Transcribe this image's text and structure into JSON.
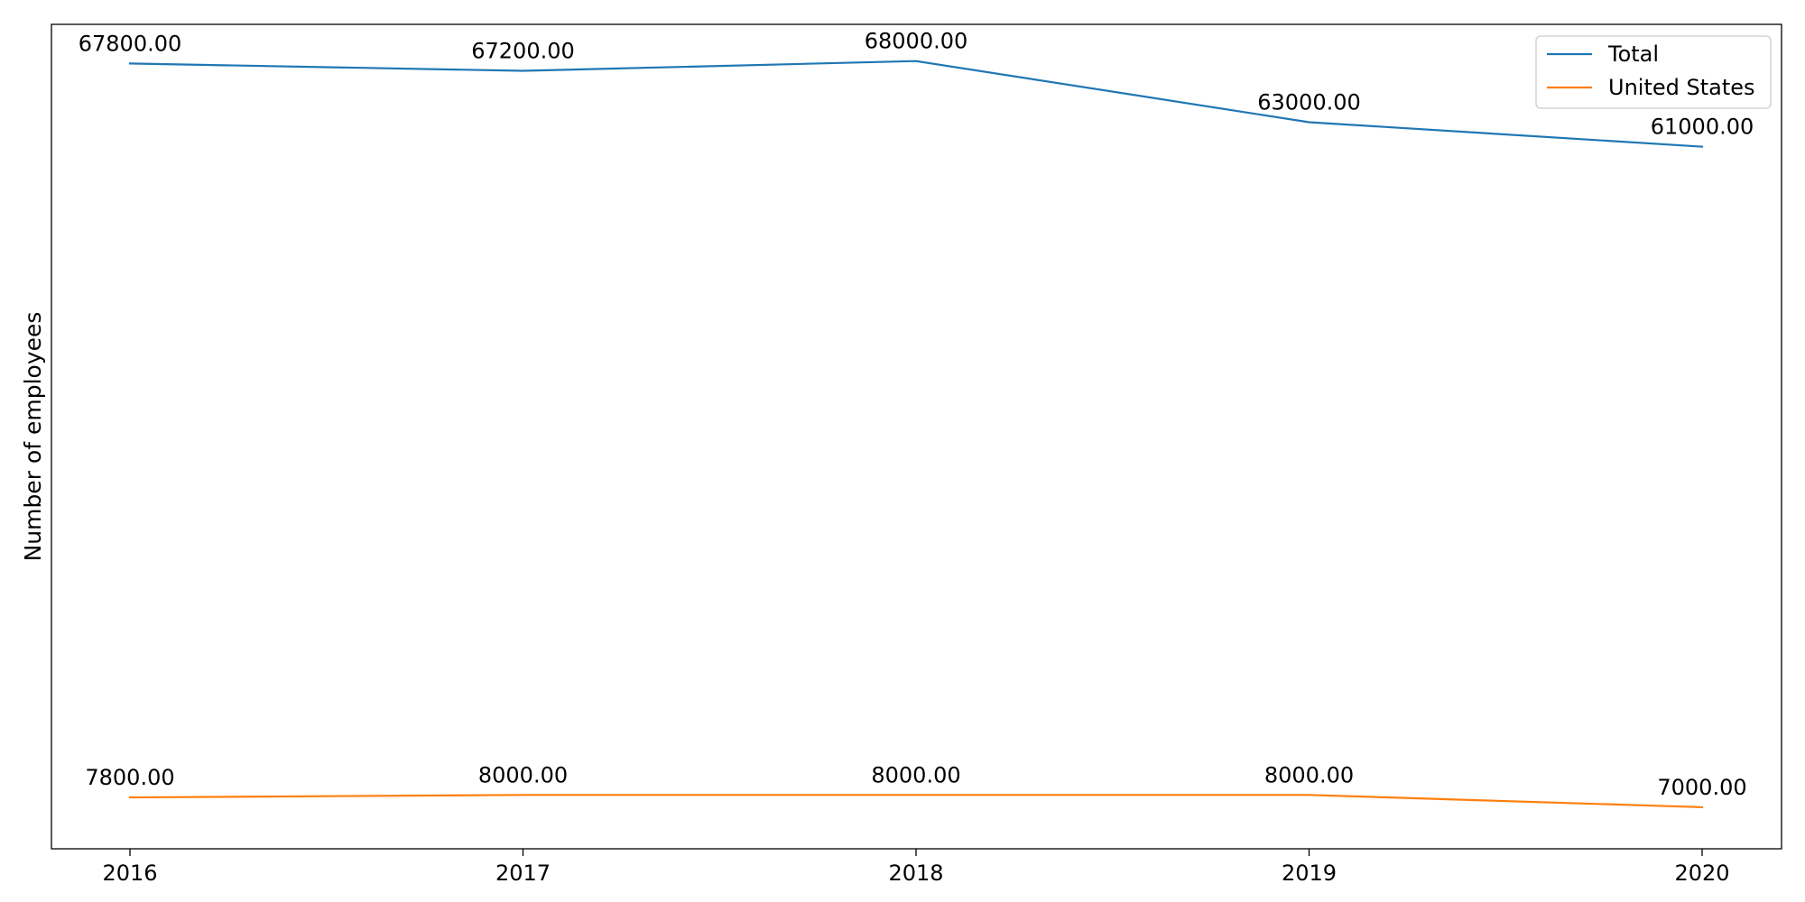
{
  "chart_data": {
    "type": "line",
    "title": "",
    "xlabel": "",
    "ylabel": "Number of employees",
    "x": [
      "2016",
      "2017",
      "2018",
      "2019",
      "2020"
    ],
    "ylim": [
      3600,
      71000
    ],
    "grid": false,
    "legend_position": "top-right",
    "y_ticks_visible": false,
    "series": [
      {
        "name": "Total",
        "color": "#1f77b4",
        "values": [
          67800,
          67200,
          68000,
          63000,
          61000
        ],
        "labels": [
          "67800.00",
          "67200.00",
          "68000.00",
          "63000.00",
          "61000.00"
        ]
      },
      {
        "name": "United States",
        "color": "#ff7f0e",
        "values": [
          7800,
          8000,
          8000,
          8000,
          7000
        ],
        "labels": [
          "7800.00",
          "8000.00",
          "8000.00",
          "8000.00",
          "7000.00"
        ]
      }
    ]
  }
}
